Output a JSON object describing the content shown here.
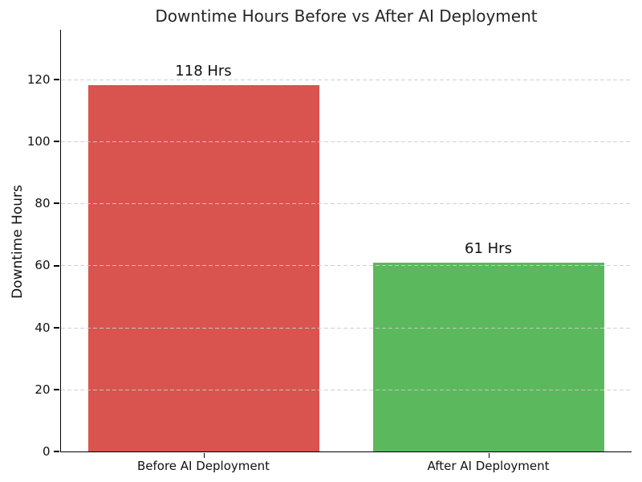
{
  "chart_data": {
    "type": "bar",
    "title": "Downtime Hours Before vs After AI Deployment",
    "categories": [
      "Before AI Deployment",
      "After AI Deployment"
    ],
    "values": [
      118,
      61
    ],
    "bar_labels": [
      "118 Hrs",
      "61 Hrs"
    ],
    "bar_colors": [
      "#d9534f",
      "#5cb85c"
    ],
    "xlabel": "",
    "ylabel": "Downtime Hours",
    "ylim": [
      0,
      136
    ],
    "yticks": [
      0,
      20,
      40,
      60,
      80,
      100,
      120
    ],
    "grid": {
      "axis": "y",
      "style": "dashed",
      "color": "#cccccc"
    },
    "legend": "none",
    "background": "#ffffff",
    "text_color": "#262626",
    "axis_color": "#000000"
  }
}
